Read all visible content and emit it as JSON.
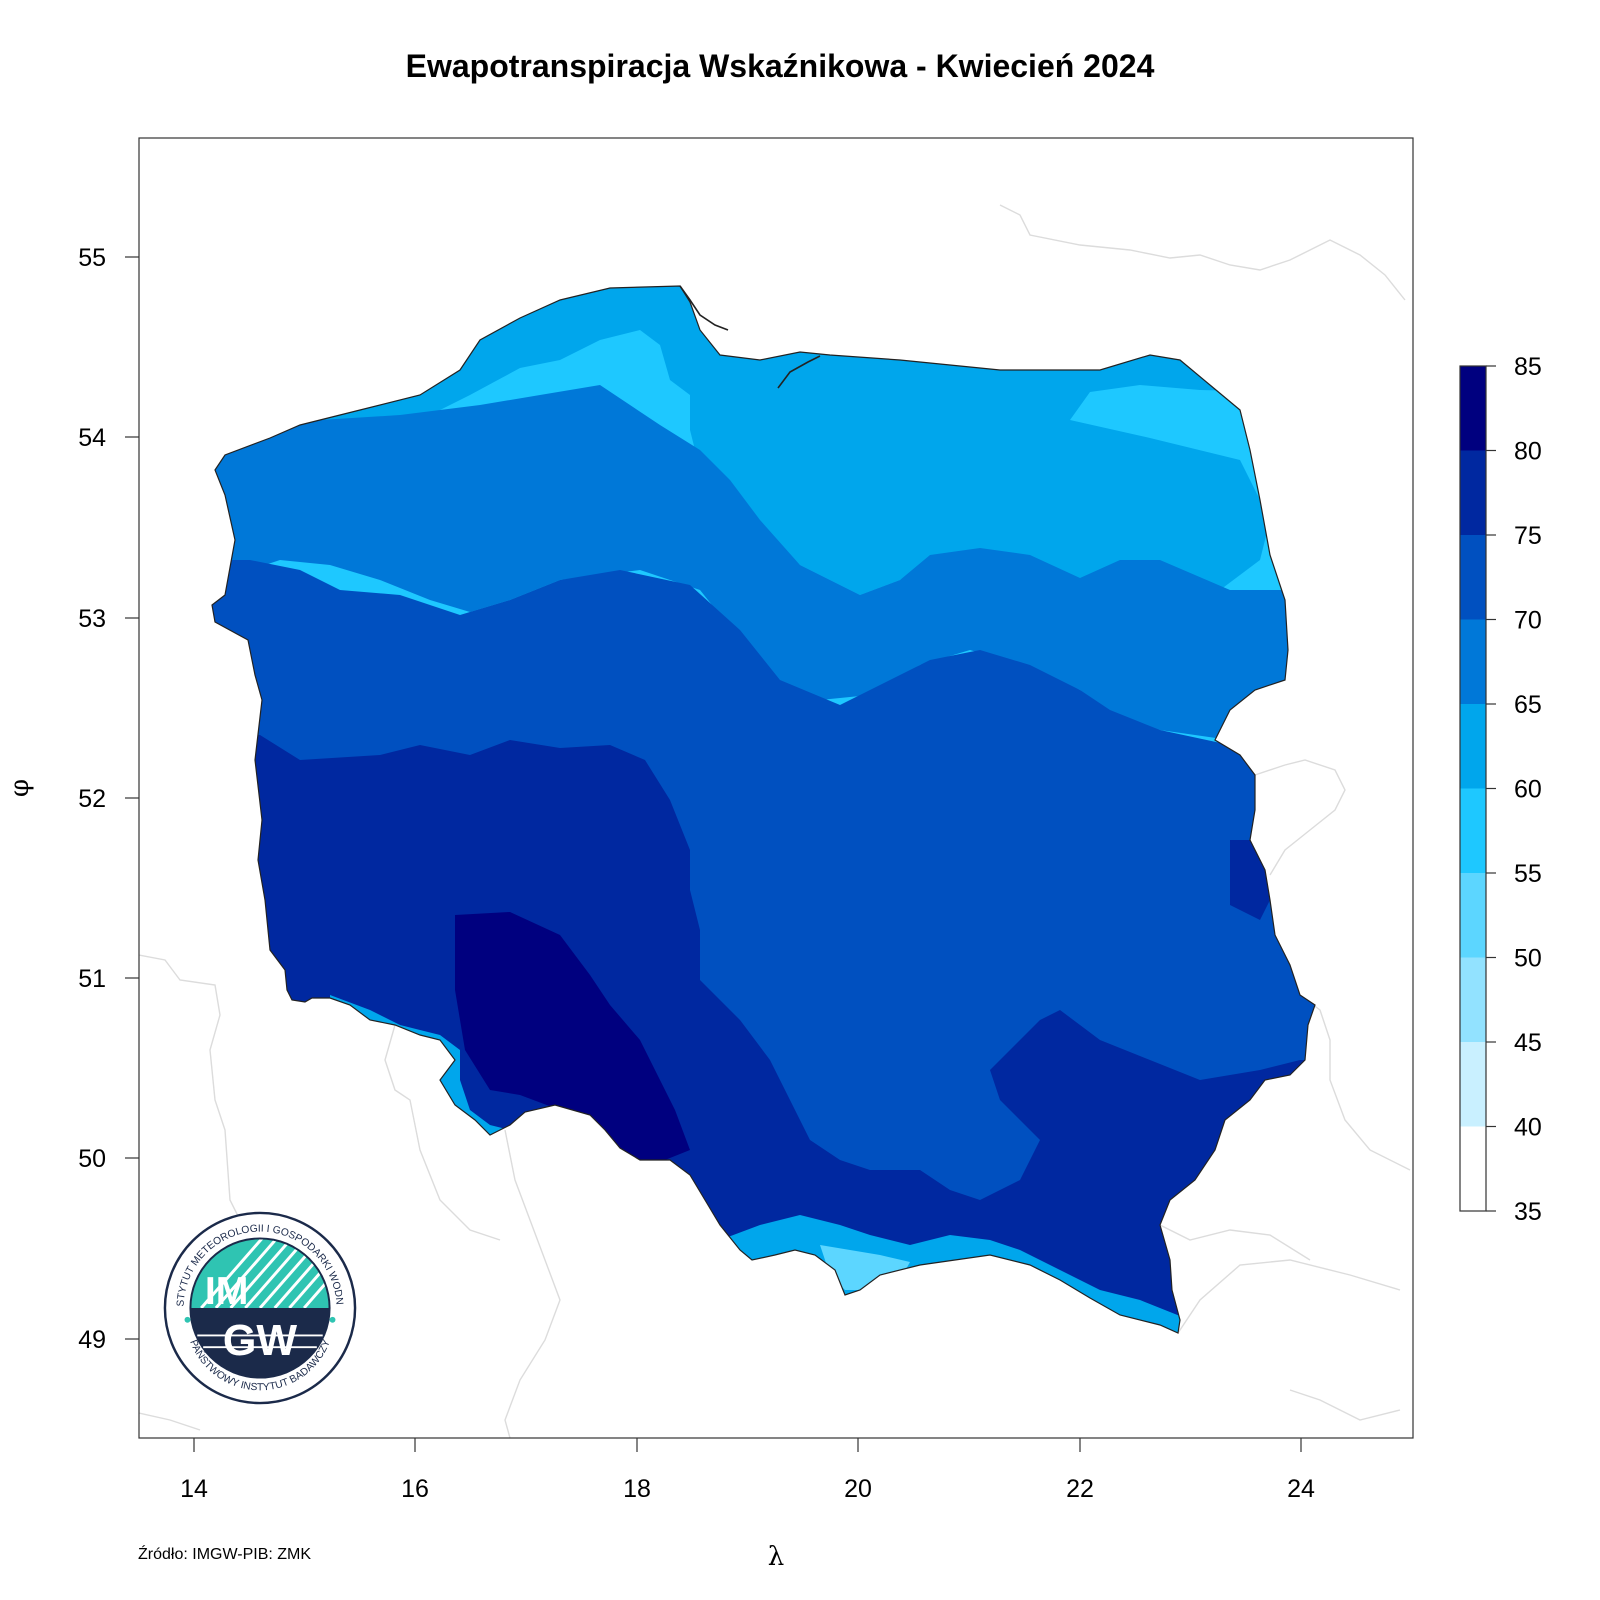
{
  "title": "Ewapotranspiracja Wskaźnikowa - Kwiecień 2024",
  "source": "Źródło: IMGW-PIB: ZMK",
  "axes": {
    "xlabel": "λ",
    "ylabel": "φ",
    "xlim": [
      13.5,
      25.0
    ],
    "ylim": [
      48.55,
      55.75
    ],
    "xticks": [
      "14",
      "16",
      "18",
      "20",
      "22",
      "24"
    ],
    "yticks": [
      "49",
      "50",
      "51",
      "52",
      "53",
      "54",
      "55"
    ]
  },
  "legend": {
    "position": "right",
    "labels": [
      "85",
      "80",
      "75",
      "70",
      "65",
      "60",
      "55",
      "50",
      "45",
      "40",
      "35"
    ],
    "colors_top_to_bottom": [
      "#00007f",
      "#0028a0",
      "#0050c0",
      "#0078d8",
      "#00a6ec",
      "#1ec8ff",
      "#5cd6ff",
      "#92e2ff",
      "#c9f0ff",
      "#ffffff"
    ]
  },
  "logo": {
    "text_top": "INSTYTUT METEOROLOGII I GOSPODARKI WODNEJ",
    "text_bottom": "PAŃSTWOWY INSTYTUT BADAWCZY",
    "line1": "IM",
    "line2": "GW"
  }
}
